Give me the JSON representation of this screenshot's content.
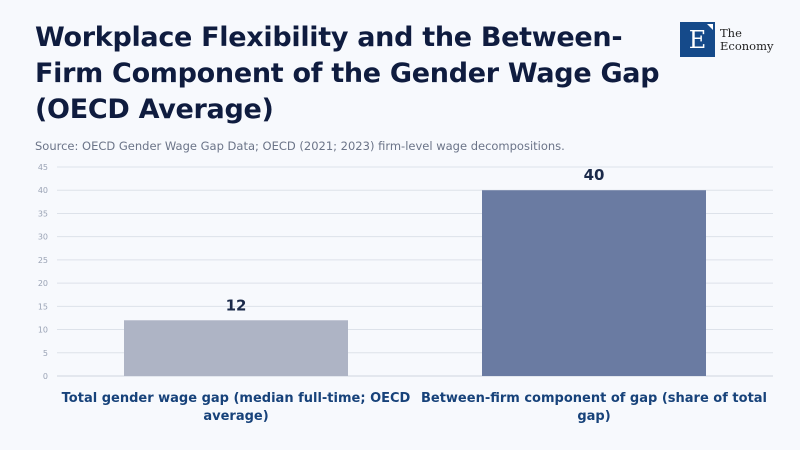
{
  "title": "Workplace Flexibility and the Between-Firm Component of the Gender Wage Gap (OECD Average)",
  "source": "Source: OECD Gender Wage Gap Data; OECD (2021; 2023) firm-level wage decompositions.",
  "logo": {
    "mark": "E",
    "line1": "The",
    "line2": "Economy"
  },
  "colors": {
    "bar1": "#aeb4c5",
    "bar2": "#6a7ba2",
    "grid": "#dde2ea",
    "label": "#17427a"
  },
  "chart_data": {
    "type": "bar",
    "title": "Workplace Flexibility and the Between-Firm Component of the Gender Wage Gap (OECD Average)",
    "categories": [
      "Total gender wage gap (median full-time; OECD average)",
      "Between-firm component of gap (share of total gap)"
    ],
    "values": [
      12,
      40
    ],
    "data_labels": [
      "12",
      "40"
    ],
    "yticks": [
      "0",
      "5",
      "10",
      "15",
      "20",
      "25",
      "30",
      "35",
      "40",
      "45"
    ],
    "ylim": [
      0,
      45
    ],
    "xlabel": "",
    "ylabel": "",
    "grid": true
  }
}
